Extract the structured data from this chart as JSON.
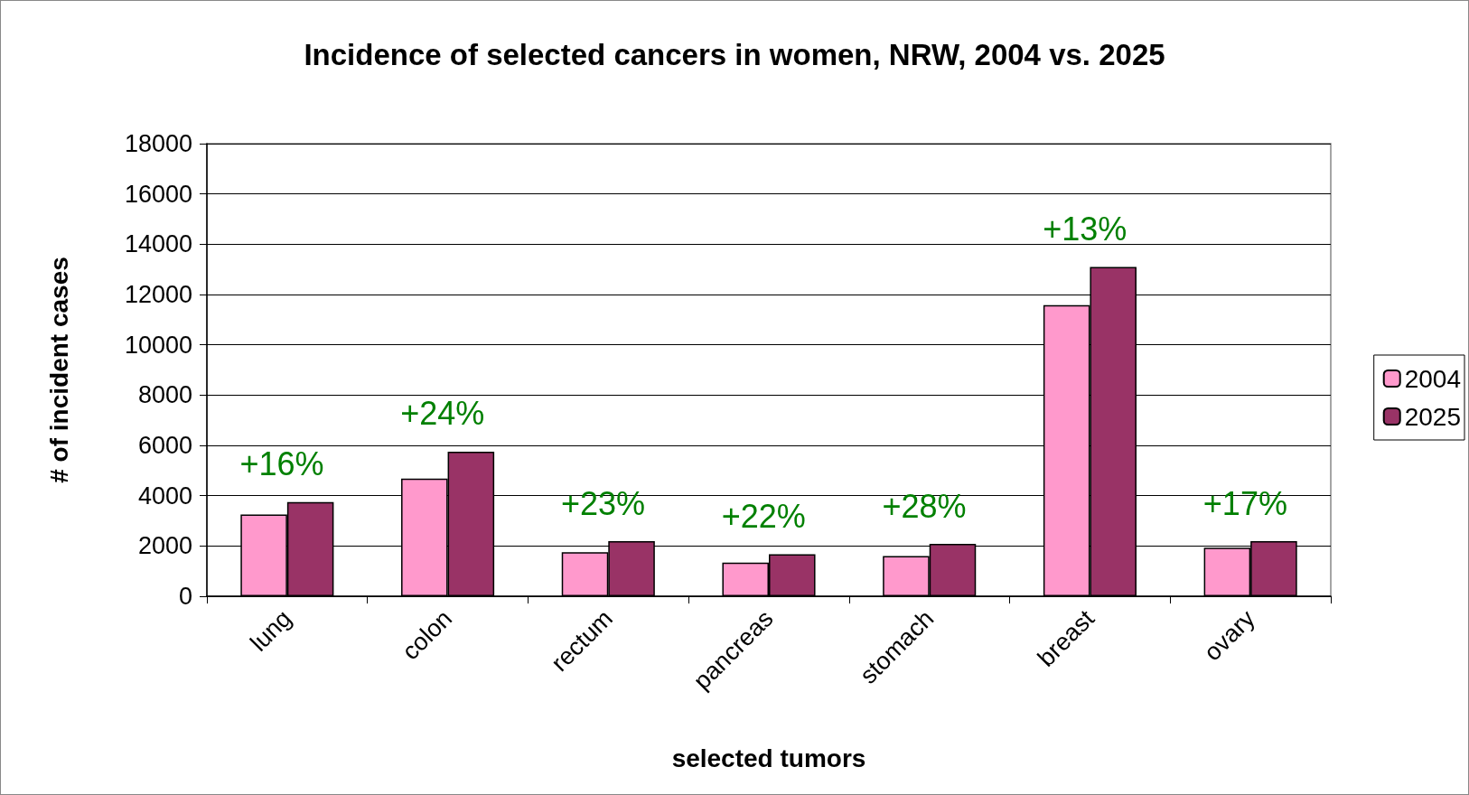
{
  "chart_data": {
    "type": "bar",
    "title": "Incidence of selected cancers in women, NRW, 2004 vs. 2025",
    "xlabel": "selected tumors",
    "ylabel": "# of incident cases",
    "categories": [
      "lung",
      "colon",
      "rectum",
      "pancreas",
      "stomach",
      "breast",
      "ovary"
    ],
    "series": [
      {
        "name": "2004",
        "color": "#ff99cc",
        "values": [
          3250,
          4680,
          1750,
          1340,
          1600,
          11580,
          1930
        ]
      },
      {
        "name": "2025",
        "color": "#993366",
        "values": [
          3750,
          5750,
          2190,
          1670,
          2080,
          13100,
          2190
        ]
      }
    ],
    "ylim": [
      0,
      18000
    ],
    "yticks": [
      0,
      2000,
      4000,
      6000,
      8000,
      10000,
      12000,
      14000,
      16000,
      18000
    ],
    "grid": "y",
    "legend": "right",
    "annotations": [
      "+16%",
      "+24%",
      "+23%",
      "+22%",
      "+28%",
      "+13%",
      "+17%"
    ]
  }
}
